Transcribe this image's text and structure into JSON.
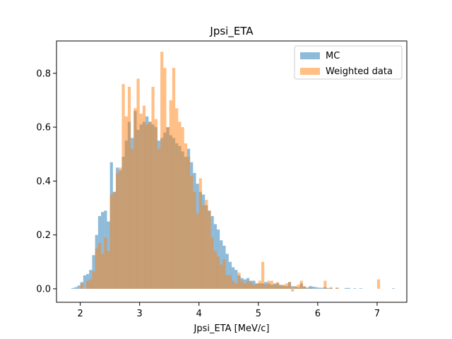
{
  "chart_data": {
    "type": "bar",
    "title": "Jpsi_ETA",
    "xlabel": "Jpsi_ETA [MeV/c]",
    "ylabel": "",
    "xlim": [
      1.6,
      7.5
    ],
    "ylim": [
      -0.05,
      0.92
    ],
    "xticks": [
      2,
      3,
      4,
      5,
      6,
      7
    ],
    "yticks": [
      0.0,
      0.2,
      0.4,
      0.6,
      0.8
    ],
    "bin_width": 0.05,
    "legend_position": "top-right",
    "grid": false,
    "series": [
      {
        "name": "MC",
        "color": "#1f77b4",
        "bins": [
          [
            1.85,
            0.003
          ],
          [
            1.9,
            0.006
          ],
          [
            1.95,
            0.012
          ],
          [
            2.0,
            0.025
          ],
          [
            2.05,
            0.05
          ],
          [
            2.1,
            0.055
          ],
          [
            2.15,
            0.07
          ],
          [
            2.2,
            0.125
          ],
          [
            2.25,
            0.2
          ],
          [
            2.3,
            0.27
          ],
          [
            2.35,
            0.285
          ],
          [
            2.4,
            0.29
          ],
          [
            2.45,
            0.25
          ],
          [
            2.5,
            0.47
          ],
          [
            2.55,
            0.36
          ],
          [
            2.6,
            0.45
          ],
          [
            2.65,
            0.44
          ],
          [
            2.7,
            0.49
          ],
          [
            2.75,
            0.55
          ],
          [
            2.8,
            0.62
          ],
          [
            2.85,
            0.56
          ],
          [
            2.9,
            0.66
          ],
          [
            2.95,
            0.59
          ],
          [
            3.0,
            0.61
          ],
          [
            3.05,
            0.62
          ],
          [
            3.1,
            0.64
          ],
          [
            3.15,
            0.62
          ],
          [
            3.2,
            0.61
          ],
          [
            3.25,
            0.6
          ],
          [
            3.3,
            0.55
          ],
          [
            3.35,
            0.56
          ],
          [
            3.4,
            0.58
          ],
          [
            3.45,
            0.6
          ],
          [
            3.5,
            0.57
          ],
          [
            3.55,
            0.56
          ],
          [
            3.6,
            0.54
          ],
          [
            3.65,
            0.53
          ],
          [
            3.7,
            0.51
          ],
          [
            3.75,
            0.49
          ],
          [
            3.8,
            0.52
          ],
          [
            3.85,
            0.47
          ],
          [
            3.9,
            0.43
          ],
          [
            3.95,
            0.39
          ],
          [
            4.0,
            0.36
          ],
          [
            4.05,
            0.35
          ],
          [
            4.1,
            0.31
          ],
          [
            4.15,
            0.29
          ],
          [
            4.2,
            0.27
          ],
          [
            4.25,
            0.24
          ],
          [
            4.3,
            0.22
          ],
          [
            4.35,
            0.18
          ],
          [
            4.4,
            0.16
          ],
          [
            4.45,
            0.13
          ],
          [
            4.5,
            0.1
          ],
          [
            4.55,
            0.08
          ],
          [
            4.6,
            0.07
          ],
          [
            4.65,
            0.05
          ],
          [
            4.7,
            0.04
          ],
          [
            4.75,
            0.035
          ],
          [
            4.8,
            0.04
          ],
          [
            4.85,
            0.03
          ],
          [
            4.9,
            0.03
          ],
          [
            4.95,
            0.02
          ],
          [
            5.0,
            0.02
          ],
          [
            5.05,
            0.02
          ],
          [
            5.1,
            0.025
          ],
          [
            5.15,
            0.02
          ],
          [
            5.2,
            0.015
          ],
          [
            5.25,
            0.02
          ],
          [
            5.3,
            0.02
          ],
          [
            5.35,
            0.015
          ],
          [
            5.4,
            0.012
          ],
          [
            5.45,
            0.01
          ],
          [
            5.5,
            0.025
          ],
          [
            5.55,
            0.01
          ],
          [
            5.6,
            0.008
          ],
          [
            5.65,
            0.005
          ],
          [
            5.7,
            0.02
          ],
          [
            5.75,
            0.008
          ],
          [
            5.8,
            0.005
          ],
          [
            5.85,
            0.01
          ],
          [
            5.9,
            0.008
          ],
          [
            5.95,
            0.006
          ],
          [
            6.0,
            0.004
          ],
          [
            6.05,
            0.004
          ],
          [
            6.1,
            0.006
          ],
          [
            6.15,
            0.003
          ],
          [
            6.2,
            0.003
          ],
          [
            6.3,
            0.004
          ],
          [
            6.45,
            0.003
          ],
          [
            6.5,
            0.003
          ],
          [
            6.6,
            0.002
          ],
          [
            6.7,
            0.002
          ],
          [
            7.25,
            0.002
          ]
        ]
      },
      {
        "name": "Weighted data",
        "color": "#ff7f0e",
        "bins": [
          [
            2.0,
            0.02
          ],
          [
            2.1,
            0.03
          ],
          [
            2.15,
            0.035
          ],
          [
            2.2,
            0.065
          ],
          [
            2.25,
            0.15
          ],
          [
            2.3,
            0.17
          ],
          [
            2.35,
            0.13
          ],
          [
            2.4,
            0.19
          ],
          [
            2.45,
            0.14
          ],
          [
            2.5,
            0.35
          ],
          [
            2.55,
            0.36
          ],
          [
            2.6,
            0.43
          ],
          [
            2.65,
            0.45
          ],
          [
            2.7,
            0.76
          ],
          [
            2.75,
            0.64
          ],
          [
            2.8,
            0.75
          ],
          [
            2.85,
            0.52
          ],
          [
            2.9,
            0.67
          ],
          [
            2.95,
            0.78
          ],
          [
            3.0,
            0.65
          ],
          [
            3.05,
            0.68
          ],
          [
            3.1,
            0.61
          ],
          [
            3.15,
            0.62
          ],
          [
            3.2,
            0.75
          ],
          [
            3.25,
            0.63
          ],
          [
            3.3,
            0.52
          ],
          [
            3.35,
            0.88
          ],
          [
            3.4,
            0.82
          ],
          [
            3.45,
            0.6
          ],
          [
            3.5,
            0.7
          ],
          [
            3.55,
            0.82
          ],
          [
            3.6,
            0.67
          ],
          [
            3.65,
            0.62
          ],
          [
            3.7,
            0.6
          ],
          [
            3.75,
            0.54
          ],
          [
            3.8,
            0.49
          ],
          [
            3.85,
            0.42
          ],
          [
            3.9,
            0.36
          ],
          [
            3.95,
            0.28
          ],
          [
            4.0,
            0.41
          ],
          [
            4.05,
            0.31
          ],
          [
            4.1,
            0.33
          ],
          [
            4.15,
            0.29
          ],
          [
            4.2,
            0.19
          ],
          [
            4.25,
            0.14
          ],
          [
            4.3,
            0.12
          ],
          [
            4.35,
            0.09
          ],
          [
            4.4,
            0.11
          ],
          [
            4.45,
            0.05
          ],
          [
            4.5,
            0.05
          ],
          [
            4.55,
            0.03
          ],
          [
            4.6,
            0.02
          ],
          [
            4.65,
            0.06
          ],
          [
            4.7,
            0.03
          ],
          [
            4.75,
            0.02
          ],
          [
            4.8,
            0.03
          ],
          [
            4.85,
            0.025
          ],
          [
            4.9,
            0.015
          ],
          [
            4.95,
            0.02
          ],
          [
            5.0,
            0.03
          ],
          [
            5.05,
            0.1
          ],
          [
            5.1,
            0.015
          ],
          [
            5.15,
            0.03
          ],
          [
            5.2,
            0.03
          ],
          [
            5.25,
            0.015
          ],
          [
            5.3,
            0.025
          ],
          [
            5.35,
            0.01
          ],
          [
            5.4,
            0.015
          ],
          [
            5.45,
            0.02
          ],
          [
            5.5,
            0.025
          ],
          [
            5.55,
            -0.01
          ],
          [
            5.6,
            0.01
          ],
          [
            5.65,
            0.015
          ],
          [
            5.7,
            0.03
          ],
          [
            5.75,
            0.01
          ],
          [
            5.85,
            0.006
          ],
          [
            6.1,
            0.03
          ],
          [
            6.2,
            0.006
          ],
          [
            6.3,
            0.004
          ],
          [
            7.0,
            0.035
          ]
        ]
      }
    ]
  }
}
